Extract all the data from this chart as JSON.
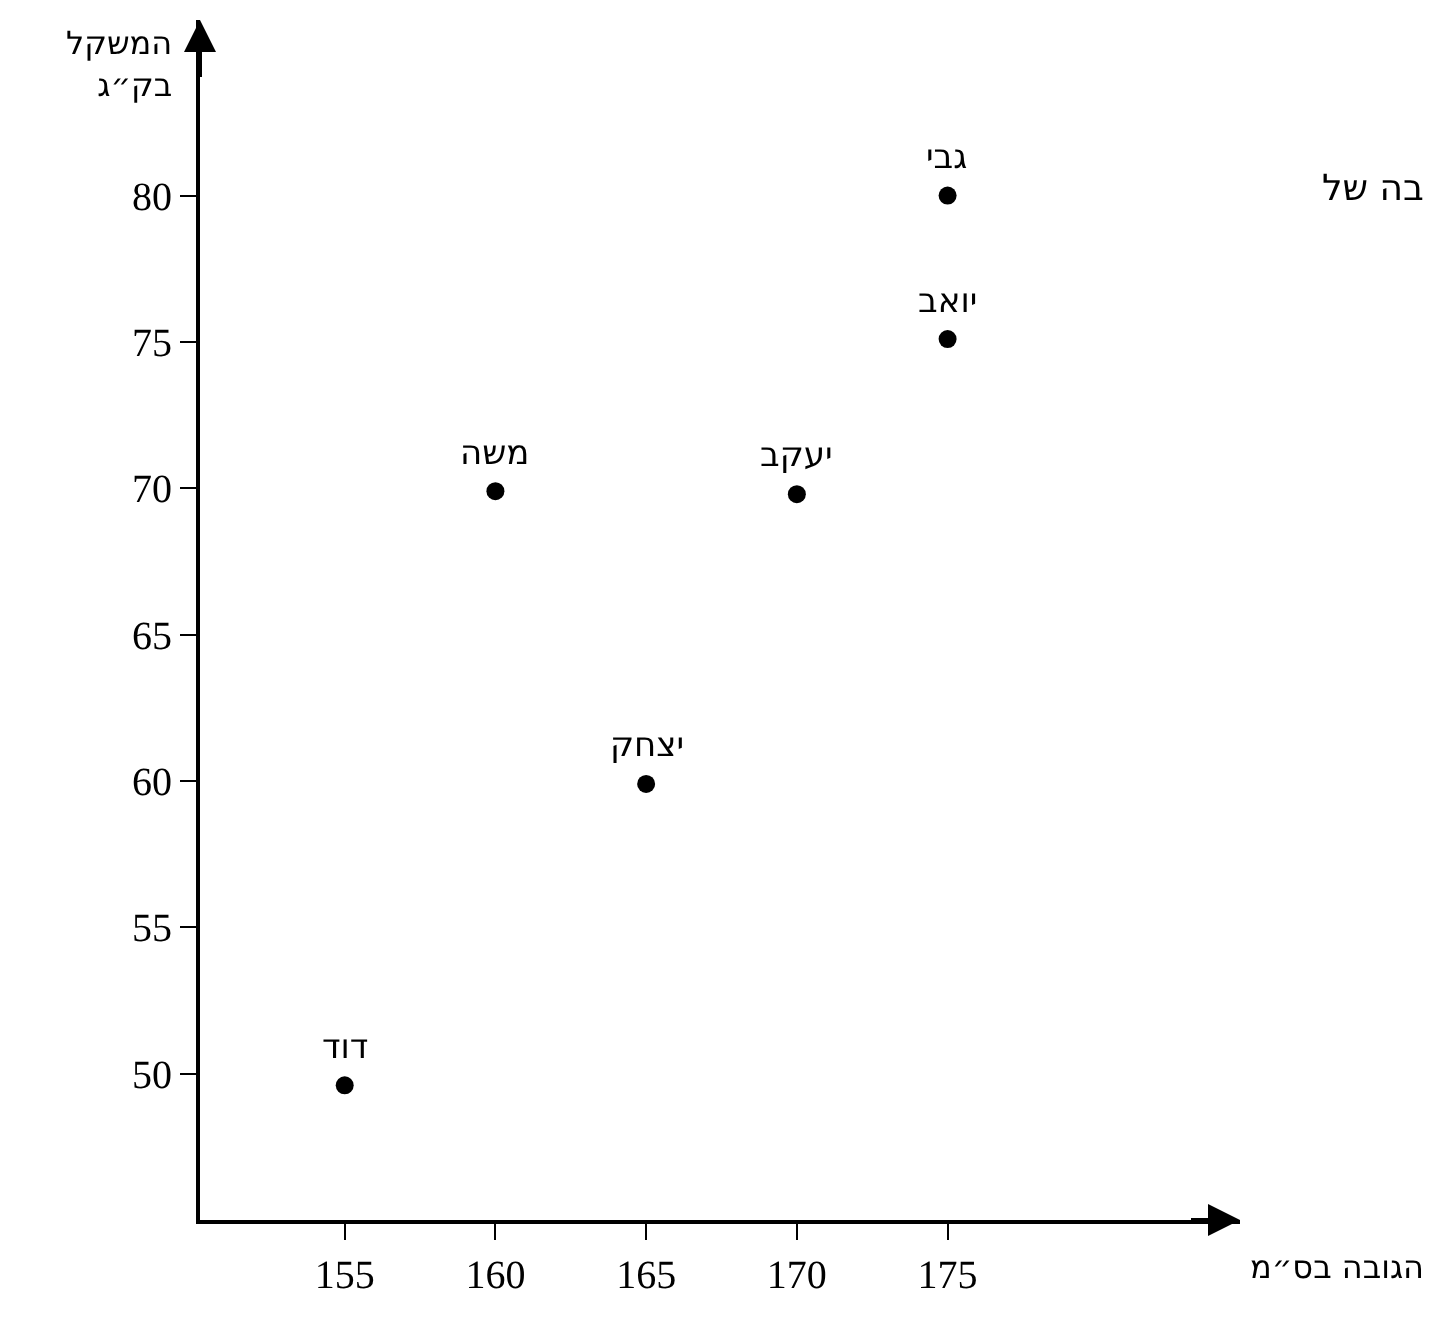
{
  "chart_data": {
    "type": "scatter",
    "xlabel": "הגובה בס״מ",
    "ylabel": "המשקל\nבק״ג",
    "x": [
      155,
      160,
      165,
      170,
      175,
      175
    ],
    "values": [
      49.6,
      69.9,
      59.9,
      69.8,
      75.1,
      80
    ],
    "color": "#000000",
    "marker": "circle",
    "grid": false,
    "xlim": [
      150.2,
      184.7
    ],
    "ylim": [
      45,
      86
    ],
    "xticks": [
      155,
      160,
      165,
      170,
      175
    ],
    "yticks": [
      50,
      55,
      60,
      65,
      70,
      75,
      80
    ],
    "annotations": [
      {
        "text": "דוד",
        "x": 155,
        "y": 49.6
      },
      {
        "text": "משה",
        "x": 160,
        "y": 69.9
      },
      {
        "text": "יצחק",
        "x": 165,
        "y": 59.9
      },
      {
        "text": "יעקב",
        "x": 170,
        "y": 69.8
      },
      {
        "text": "יואב",
        "x": 175,
        "y": 75.1
      },
      {
        "text": "גבי",
        "x": 175,
        "y": 80
      },
      "בה של"
    ]
  }
}
